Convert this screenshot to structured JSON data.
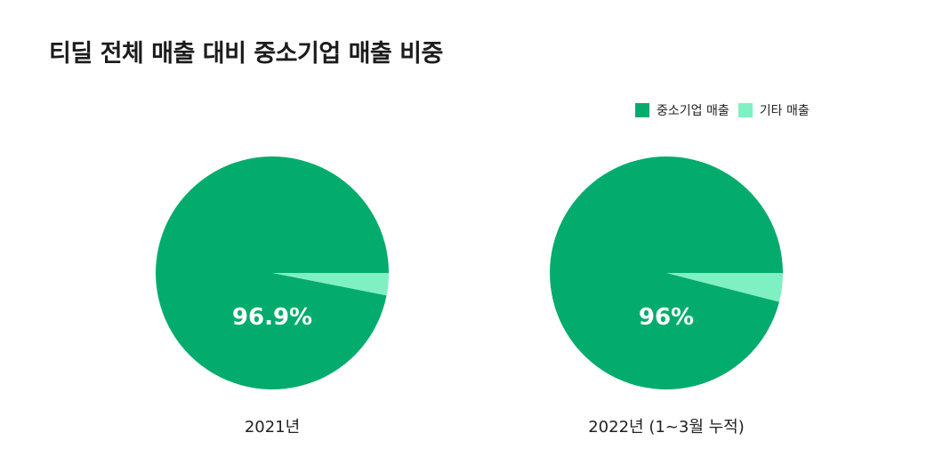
{
  "title": "티딜 전체 매출 대비 중소기업 매출 비중",
  "legend": [
    {
      "label": "중소기업 매출",
      "color": "#03ac6d"
    },
    {
      "label": "기타 매출",
      "color": "#7ff0c1"
    }
  ],
  "chart_data": [
    {
      "type": "pie",
      "caption": "2021년",
      "slices": [
        {
          "name": "중소기업 매출",
          "value": 96.9,
          "color": "#03ac6d"
        },
        {
          "name": "기타 매출",
          "value": 3.1,
          "color": "#7ff0c1"
        }
      ],
      "center_label": "96.9%",
      "legend_placement": "top-right"
    },
    {
      "type": "pie",
      "caption": "2022년 (1~3월 누적)",
      "slices": [
        {
          "name": "중소기업 매출",
          "value": 96,
          "color": "#03ac6d"
        },
        {
          "name": "기타 매출",
          "value": 4,
          "color": "#7ff0c1"
        }
      ],
      "center_label": "96%",
      "legend_placement": "top-right"
    }
  ]
}
